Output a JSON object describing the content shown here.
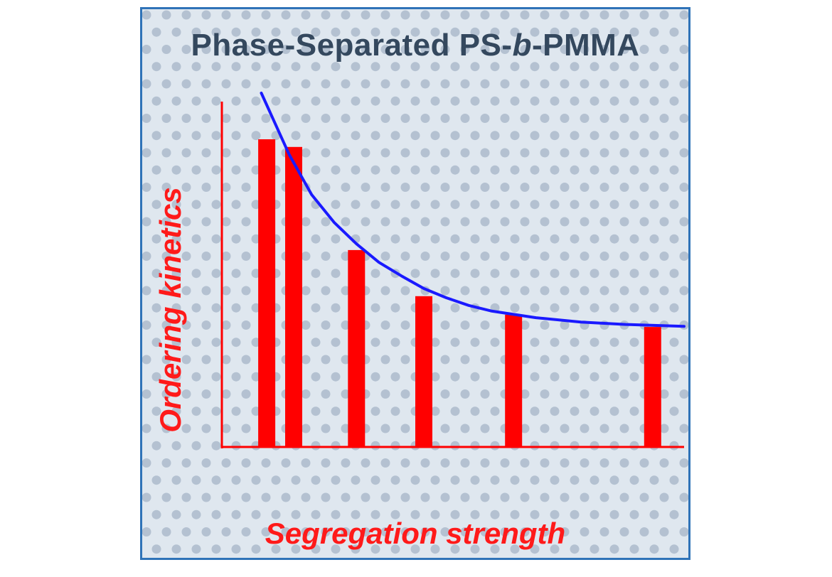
{
  "figure": {
    "title_prefix": "Phase-Separated PS-",
    "title_italic": "b",
    "title_suffix": "-PMMA"
  },
  "colors": {
    "frame": "#2f73b8",
    "bars": "#ff0000",
    "curve": "#1a1aff",
    "axis": "#ff0000",
    "title": "#34485e",
    "background": "#dfe7ef",
    "dots": "#8fa3b8"
  },
  "chart_data": {
    "type": "bar",
    "title": "Phase-Separated PS-b-PMMA",
    "xlabel": "Segregation strength",
    "ylabel": "Ordering kinetics",
    "x": [
      1.0,
      1.6,
      3.0,
      4.5,
      6.5,
      9.6
    ],
    "values": [
      100,
      97.5,
      64,
      49,
      43,
      39
    ],
    "xlim": [
      0,
      10.3
    ],
    "ylim": [
      0,
      115
    ],
    "ticks": "none",
    "grid": false,
    "legend": "none",
    "trend_curve": {
      "type": "line",
      "x": [
        0.88,
        1.5,
        2.0,
        2.5,
        3.0,
        3.5,
        4.0,
        4.5,
        5.0,
        5.5,
        6.0,
        7.0,
        8.0,
        9.0,
        10.3
      ],
      "y": [
        115,
        95,
        82,
        73,
        66,
        60,
        55.6,
        51.5,
        48.5,
        46,
        44.2,
        42,
        40.6,
        39.8,
        39.2
      ]
    }
  }
}
